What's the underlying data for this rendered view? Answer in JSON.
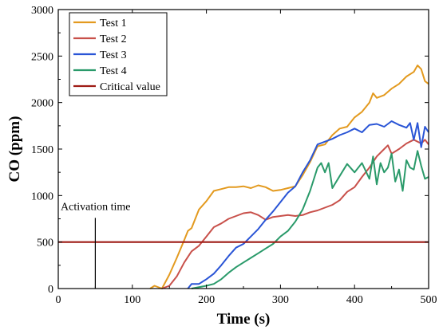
{
  "chart_data": {
    "type": "line",
    "xlabel": "Time (s)",
    "ylabel": "CO (ppm)",
    "xlim": [
      0,
      500
    ],
    "ylim": [
      0,
      3000
    ],
    "xticks": [
      0,
      100,
      200,
      300,
      400,
      500
    ],
    "yticks": [
      0,
      500,
      1000,
      1500,
      2000,
      2500,
      3000
    ],
    "grid": false,
    "legend_position": "top-left",
    "series": [
      {
        "name": "Test 1",
        "color": "#E39A1F",
        "points": [
          [
            124,
            0
          ],
          [
            130,
            30
          ],
          [
            140,
            0
          ],
          [
            150,
            150
          ],
          [
            160,
            330
          ],
          [
            170,
            520
          ],
          [
            175,
            620
          ],
          [
            180,
            650
          ],
          [
            190,
            850
          ],
          [
            200,
            940
          ],
          [
            210,
            1050
          ],
          [
            220,
            1070
          ],
          [
            230,
            1090
          ],
          [
            240,
            1090
          ],
          [
            250,
            1100
          ],
          [
            260,
            1080
          ],
          [
            270,
            1110
          ],
          [
            280,
            1090
          ],
          [
            290,
            1050
          ],
          [
            300,
            1060
          ],
          [
            310,
            1080
          ],
          [
            320,
            1100
          ],
          [
            330,
            1220
          ],
          [
            340,
            1360
          ],
          [
            350,
            1530
          ],
          [
            360,
            1550
          ],
          [
            370,
            1650
          ],
          [
            380,
            1720
          ],
          [
            390,
            1740
          ],
          [
            400,
            1840
          ],
          [
            410,
            1900
          ],
          [
            420,
            2000
          ],
          [
            425,
            2100
          ],
          [
            430,
            2050
          ],
          [
            440,
            2080
          ],
          [
            450,
            2150
          ],
          [
            460,
            2200
          ],
          [
            470,
            2280
          ],
          [
            480,
            2330
          ],
          [
            485,
            2400
          ],
          [
            490,
            2360
          ],
          [
            495,
            2230
          ],
          [
            500,
            2200
          ]
        ]
      },
      {
        "name": "Test 2",
        "color": "#C8504A",
        "points": [
          [
            140,
            0
          ],
          [
            150,
            30
          ],
          [
            160,
            130
          ],
          [
            170,
            280
          ],
          [
            180,
            400
          ],
          [
            190,
            460
          ],
          [
            200,
            560
          ],
          [
            210,
            660
          ],
          [
            220,
            700
          ],
          [
            230,
            750
          ],
          [
            240,
            780
          ],
          [
            250,
            810
          ],
          [
            260,
            820
          ],
          [
            270,
            790
          ],
          [
            280,
            740
          ],
          [
            290,
            770
          ],
          [
            300,
            780
          ],
          [
            310,
            790
          ],
          [
            320,
            780
          ],
          [
            330,
            790
          ],
          [
            340,
            820
          ],
          [
            350,
            840
          ],
          [
            360,
            870
          ],
          [
            370,
            900
          ],
          [
            380,
            950
          ],
          [
            390,
            1040
          ],
          [
            400,
            1090
          ],
          [
            410,
            1200
          ],
          [
            420,
            1300
          ],
          [
            430,
            1420
          ],
          [
            440,
            1500
          ],
          [
            445,
            1540
          ],
          [
            450,
            1450
          ],
          [
            460,
            1500
          ],
          [
            470,
            1560
          ],
          [
            480,
            1600
          ],
          [
            490,
            1560
          ],
          [
            495,
            1600
          ],
          [
            500,
            1550
          ]
        ]
      },
      {
        "name": "Test 3",
        "color": "#2A55D6",
        "points": [
          [
            175,
            0
          ],
          [
            180,
            50
          ],
          [
            190,
            50
          ],
          [
            200,
            100
          ],
          [
            210,
            160
          ],
          [
            220,
            250
          ],
          [
            230,
            350
          ],
          [
            240,
            440
          ],
          [
            250,
            480
          ],
          [
            260,
            560
          ],
          [
            270,
            640
          ],
          [
            280,
            740
          ],
          [
            290,
            830
          ],
          [
            300,
            930
          ],
          [
            310,
            1030
          ],
          [
            320,
            1100
          ],
          [
            330,
            1250
          ],
          [
            340,
            1380
          ],
          [
            350,
            1550
          ],
          [
            360,
            1580
          ],
          [
            370,
            1610
          ],
          [
            380,
            1650
          ],
          [
            390,
            1680
          ],
          [
            400,
            1720
          ],
          [
            410,
            1680
          ],
          [
            420,
            1760
          ],
          [
            430,
            1770
          ],
          [
            440,
            1740
          ],
          [
            450,
            1800
          ],
          [
            460,
            1760
          ],
          [
            470,
            1730
          ],
          [
            475,
            1780
          ],
          [
            480,
            1600
          ],
          [
            485,
            1780
          ],
          [
            490,
            1520
          ],
          [
            495,
            1740
          ],
          [
            500,
            1680
          ]
        ]
      },
      {
        "name": "Test 4",
        "color": "#2A9A6A",
        "points": [
          [
            180,
            0
          ],
          [
            200,
            30
          ],
          [
            210,
            50
          ],
          [
            220,
            100
          ],
          [
            230,
            170
          ],
          [
            240,
            230
          ],
          [
            250,
            280
          ],
          [
            260,
            330
          ],
          [
            270,
            380
          ],
          [
            280,
            430
          ],
          [
            290,
            480
          ],
          [
            300,
            560
          ],
          [
            310,
            620
          ],
          [
            320,
            720
          ],
          [
            330,
            850
          ],
          [
            340,
            1050
          ],
          [
            350,
            1300
          ],
          [
            355,
            1350
          ],
          [
            360,
            1250
          ],
          [
            365,
            1350
          ],
          [
            370,
            1080
          ],
          [
            380,
            1210
          ],
          [
            390,
            1340
          ],
          [
            400,
            1250
          ],
          [
            410,
            1350
          ],
          [
            420,
            1180
          ],
          [
            425,
            1420
          ],
          [
            430,
            1120
          ],
          [
            435,
            1350
          ],
          [
            440,
            1250
          ],
          [
            445,
            1300
          ],
          [
            450,
            1450
          ],
          [
            455,
            1150
          ],
          [
            460,
            1280
          ],
          [
            465,
            1050
          ],
          [
            470,
            1380
          ],
          [
            475,
            1300
          ],
          [
            480,
            1280
          ],
          [
            485,
            1480
          ],
          [
            490,
            1320
          ],
          [
            495,
            1180
          ],
          [
            500,
            1200
          ]
        ]
      },
      {
        "name": "Critical value",
        "color": "#9E1B15",
        "points": [
          [
            0,
            500
          ],
          [
            500,
            500
          ]
        ]
      }
    ],
    "annotations": [
      {
        "text": "Activation time",
        "x": 50,
        "y_range": [
          0,
          760
        ]
      }
    ]
  }
}
